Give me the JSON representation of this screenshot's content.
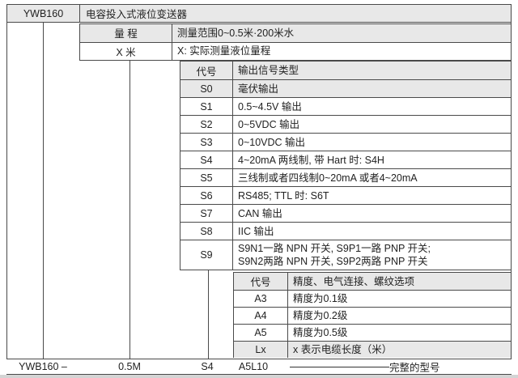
{
  "colors": {
    "row_shade": "#e8e8e8",
    "line": "#4a4a4a"
  },
  "title_row": {
    "model": "YWB160",
    "product": "电容投入式液位变送器"
  },
  "range_block": {
    "rows": [
      {
        "code": "量 程",
        "desc": "测量范围0~0.5米·200米水"
      },
      {
        "code": "X 米",
        "desc": "X: 实际测量液位量程"
      }
    ]
  },
  "signal_table": {
    "header": {
      "code": "代号",
      "desc": "输出信号类型"
    },
    "rows": [
      {
        "code": "S0",
        "desc": "毫伏输出"
      },
      {
        "code": "S1",
        "desc": "0.5~4.5V 输出"
      },
      {
        "code": "S2",
        "desc": "0~5VDC 输出"
      },
      {
        "code": "S3",
        "desc": "0~10VDC 输出"
      },
      {
        "code": "S4",
        "desc": "4~20mA 两线制, 带 Hart 时: S4H"
      },
      {
        "code": "S5",
        "desc": "三线制或者四线制0~20mA 或者4~20mA"
      },
      {
        "code": "S6",
        "desc": "RS485; TTL 时: S6T"
      },
      {
        "code": "S7",
        "desc": "CAN 输出"
      },
      {
        "code": "S8",
        "desc": "IIC 输出"
      },
      {
        "code": "S9",
        "desc": "S9N1一路 NPN 开关, S9P1一路 PNP 开关;\nS9N2两路 NPN 开关, S9P2两路 PNP 开关"
      }
    ]
  },
  "option_table": {
    "header": {
      "code": "代号",
      "desc": "精度、电气连接、螺纹选项"
    },
    "rows": [
      {
        "code": "A3",
        "desc": "精度为0.1级"
      },
      {
        "code": "A4",
        "desc": "精度为0.2级"
      },
      {
        "code": "A5",
        "desc": "精度为0.5级"
      },
      {
        "code": "Lx",
        "desc": "x 表示电缆长度（米）"
      }
    ]
  },
  "example_row": {
    "model": "YWB160 –",
    "range": "0.5M",
    "signal": "S4",
    "options": "A5L10",
    "label": "完整的型号"
  }
}
